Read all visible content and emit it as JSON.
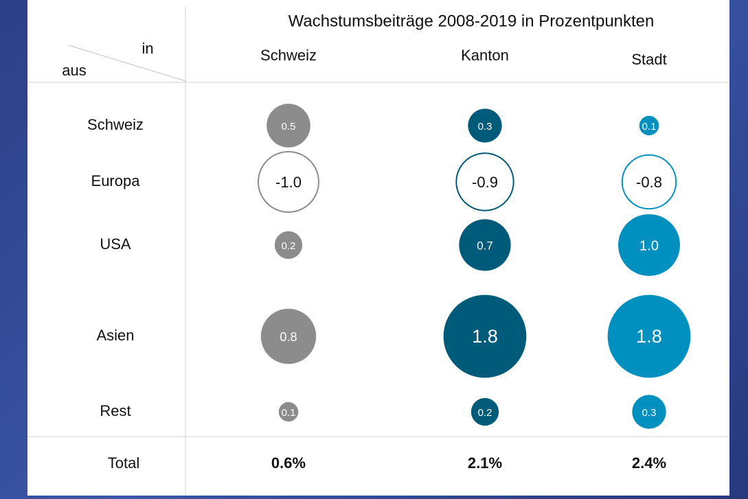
{
  "chart_data": {
    "type": "bubble-table",
    "title": "Wachstumsbeiträge 2008-2019 in Prozentpunkten",
    "column_header_label": "in",
    "row_header_label": "aus",
    "rows": [
      "Schweiz",
      "Europa",
      "USA",
      "Asien",
      "Rest"
    ],
    "series": [
      {
        "name": "Schweiz",
        "color": "#8c8c8c",
        "values": [
          0.5,
          -1.0,
          0.2,
          0.8,
          0.1
        ],
        "value_labels": [
          "0.5",
          "-1.0",
          "0.2",
          "0.8",
          "0.1"
        ]
      },
      {
        "name": "Kanton",
        "color": "#005a7a",
        "values": [
          0.3,
          -0.9,
          0.7,
          1.8,
          0.2
        ],
        "value_labels": [
          "0.3",
          "-0.9",
          "0.7",
          "1.8",
          "0.2"
        ]
      },
      {
        "name": "Stadt",
        "color": "#0090c0",
        "values": [
          0.1,
          -0.8,
          1.0,
          1.8,
          0.3
        ],
        "value_labels": [
          "0.1",
          "-0.8",
          "1.0",
          "1.8",
          "0.3"
        ]
      }
    ],
    "total_label": "Total",
    "totals": {
      "values": [
        0.6,
        2.1,
        2.4
      ],
      "value_labels": [
        "0.6%",
        "2.1%",
        "2.4%"
      ]
    }
  }
}
